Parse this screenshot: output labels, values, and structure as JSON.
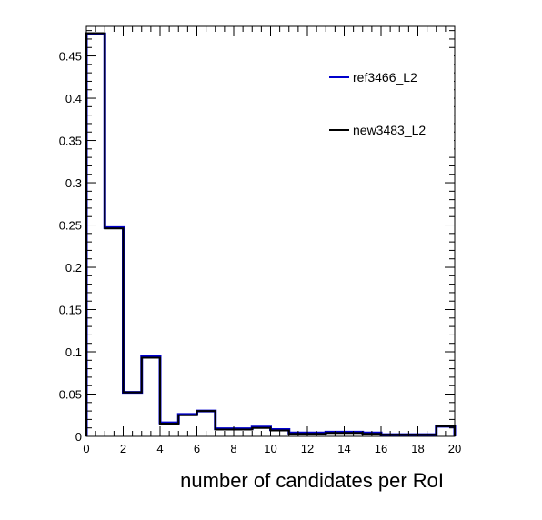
{
  "chart_data": {
    "type": "histogram",
    "xlabel": "number of candidates per RoI",
    "ylabel": "",
    "xlim": [
      0,
      20
    ],
    "ylim": [
      0,
      0.485
    ],
    "x_ticks": [
      0,
      2,
      4,
      6,
      8,
      10,
      12,
      14,
      16,
      18,
      20
    ],
    "y_ticks": [
      0,
      0.05,
      0.1,
      0.15,
      0.2,
      0.25,
      0.3,
      0.35,
      0.4,
      0.45
    ],
    "bin_edges": [
      0,
      1,
      2,
      3,
      4,
      5,
      6,
      7,
      8,
      9,
      10,
      11,
      12,
      13,
      14,
      15,
      16,
      17,
      18,
      19,
      20
    ],
    "series": [
      {
        "name": "ref3466_L2",
        "color": "#0000cc",
        "values": [
          0.476,
          0.247,
          0.052,
          0.095,
          0.016,
          0.026,
          0.03,
          0.009,
          0.009,
          0.011,
          0.008,
          0.004,
          0.004,
          0.005,
          0.005,
          0.004,
          0.002,
          0.002,
          0.002,
          0.012
        ]
      },
      {
        "name": "new3483_L2",
        "color": "#000000",
        "values": [
          0.477,
          0.246,
          0.052,
          0.093,
          0.015,
          0.025,
          0.03,
          0.008,
          0.008,
          0.01,
          0.007,
          0.003,
          0.003,
          0.004,
          0.004,
          0.003,
          0.002,
          0.002,
          0.002,
          0.012
        ]
      }
    ],
    "legend_position": "top-right",
    "grid": false
  }
}
